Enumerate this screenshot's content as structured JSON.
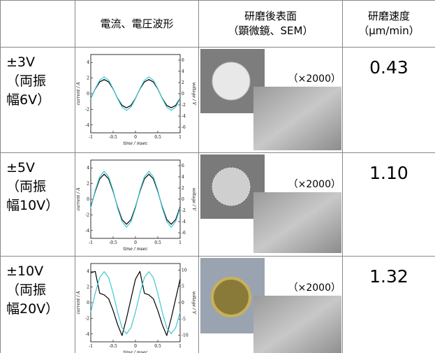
{
  "table": {
    "header": {
      "waveform": "電流、電圧波形",
      "surface": [
        "研磨後表面",
        "（顕微鏡、SEM）"
      ],
      "rate": [
        "研磨速度",
        "（μm/min）"
      ]
    },
    "rows": [
      {
        "condition": [
          "±3V",
          "（両振",
          "幅6V）"
        ],
        "magnification": "（×2000）",
        "rate": "0.43",
        "waveform": {
          "type": "line",
          "xlabel": "time / msec",
          "ylabel": "current / A",
          "y2label": "voltage / V",
          "x": [
            -1,
            -0.9,
            -0.8,
            -0.7,
            -0.6,
            -0.5,
            -0.4,
            -0.3,
            -0.2,
            -0.1,
            0,
            0.1,
            0.2,
            0.3,
            0.4,
            0.5,
            0.6,
            0.7,
            0.8,
            0.9,
            1
          ],
          "xlim": [
            -1,
            1
          ],
          "xticks": [
            -1,
            -0.5,
            0,
            0.5,
            1
          ],
          "ylim": [
            -5,
            5
          ],
          "yticks": [
            -4,
            -2,
            0,
            2,
            4
          ],
          "y2lim": [
            -7,
            7
          ],
          "y2ticks": [
            -6,
            -4,
            -2,
            0,
            2,
            4,
            6
          ],
          "series": [
            {
              "color": "#000000",
              "values": [
                -0.6,
                0.6,
                1.5,
                1.8,
                1.5,
                0.6,
                -0.6,
                -1.5,
                -1.8,
                -1.5,
                -0.6,
                0.6,
                1.5,
                1.8,
                1.5,
                0.6,
                -0.6,
                -1.5,
                -1.8,
                -1.5,
                -0.6
              ]
            },
            {
              "color": "#3cc8d0",
              "axis": "y2",
              "values": [
                -0.9,
                0.9,
                2.4,
                3,
                2.4,
                0.9,
                -0.9,
                -2.4,
                -3,
                -2.4,
                -0.9,
                0.9,
                2.4,
                3,
                2.4,
                0.9,
                -0.9,
                -2.4,
                -3,
                -2.4,
                -0.9
              ]
            }
          ]
        }
      },
      {
        "condition": [
          "±5V",
          "（両振",
          "幅10V）"
        ],
        "magnification": "（×2000）",
        "rate": "1.10",
        "waveform": {
          "type": "line",
          "xlabel": "time / msec",
          "ylabel": "current / A",
          "y2label": "voltage / V",
          "x": [
            -1,
            -0.9,
            -0.8,
            -0.7,
            -0.6,
            -0.5,
            -0.4,
            -0.3,
            -0.2,
            -0.1,
            0,
            0.1,
            0.2,
            0.3,
            0.4,
            0.5,
            0.6,
            0.7,
            0.8,
            0.9,
            1
          ],
          "xlim": [
            -1,
            1
          ],
          "xticks": [
            -1,
            -0.5,
            0,
            0.5,
            1
          ],
          "ylim": [
            -5,
            5
          ],
          "yticks": [
            -4,
            -2,
            0,
            2,
            4
          ],
          "y2lim": [
            -7,
            7
          ],
          "y2ticks": [
            -6,
            -4,
            -2,
            0,
            2,
            4,
            6
          ],
          "series": [
            {
              "color": "#000000",
              "values": [
                -1,
                1,
                2.6,
                3.2,
                2.6,
                1,
                -1,
                -2.6,
                -3.2,
                -2.6,
                -1,
                1,
                2.6,
                3.2,
                2.6,
                1,
                -1,
                -2.6,
                -3.2,
                -2.6,
                -1
              ]
            },
            {
              "color": "#3cc8d0",
              "axis": "y2",
              "values": [
                -1.6,
                1.6,
                4,
                5,
                4,
                1.6,
                -1.6,
                -4,
                -5,
                -4,
                -1.6,
                1.6,
                4,
                5,
                4,
                1.6,
                -1.6,
                -4,
                -5,
                -4,
                -1.6
              ]
            }
          ]
        }
      },
      {
        "condition": [
          "±10V",
          "（両振",
          "幅20V）"
        ],
        "magnification": "（×2000）",
        "rate": "1.32",
        "waveform": {
          "type": "line",
          "xlabel": "time / msec",
          "ylabel": "current / A",
          "y2label": "voltage / V",
          "x": [
            -1,
            -0.9,
            -0.8,
            -0.7,
            -0.6,
            -0.5,
            -0.4,
            -0.3,
            -0.2,
            -0.1,
            0,
            0.1,
            0.2,
            0.3,
            0.4,
            0.5,
            0.6,
            0.7,
            0.8,
            0.9,
            1
          ],
          "xlim": [
            -1,
            1
          ],
          "xticks": [
            -1,
            -0.5,
            0,
            0.5,
            1
          ],
          "ylim": [
            -5,
            5
          ],
          "yticks": [
            -4,
            -2,
            0,
            2,
            4
          ],
          "y2lim": [
            -12,
            12
          ],
          "y2ticks": [
            -10,
            -5,
            0,
            5,
            10
          ],
          "series": [
            {
              "color": "#000000",
              "values": [
                3.8,
                4,
                1.2,
                1,
                0.5,
                -1,
                -2.8,
                -4.2,
                -2,
                0.5,
                3,
                4,
                1.2,
                1,
                0.5,
                -1,
                -2.8,
                -4.2,
                -2,
                0.5,
                3
              ]
            },
            {
              "color": "#3cc8d0",
              "axis": "y2",
              "values": [
                -2.9,
                2.9,
                7.7,
                9.5,
                7.7,
                2.9,
                -2.9,
                -7.7,
                -9.5,
                -7.7,
                -2.9,
                2.9,
                7.7,
                9.5,
                7.7,
                2.9,
                -2.9,
                -7.7,
                -9.5,
                -7.7,
                -2.9
              ]
            }
          ]
        }
      }
    ]
  }
}
